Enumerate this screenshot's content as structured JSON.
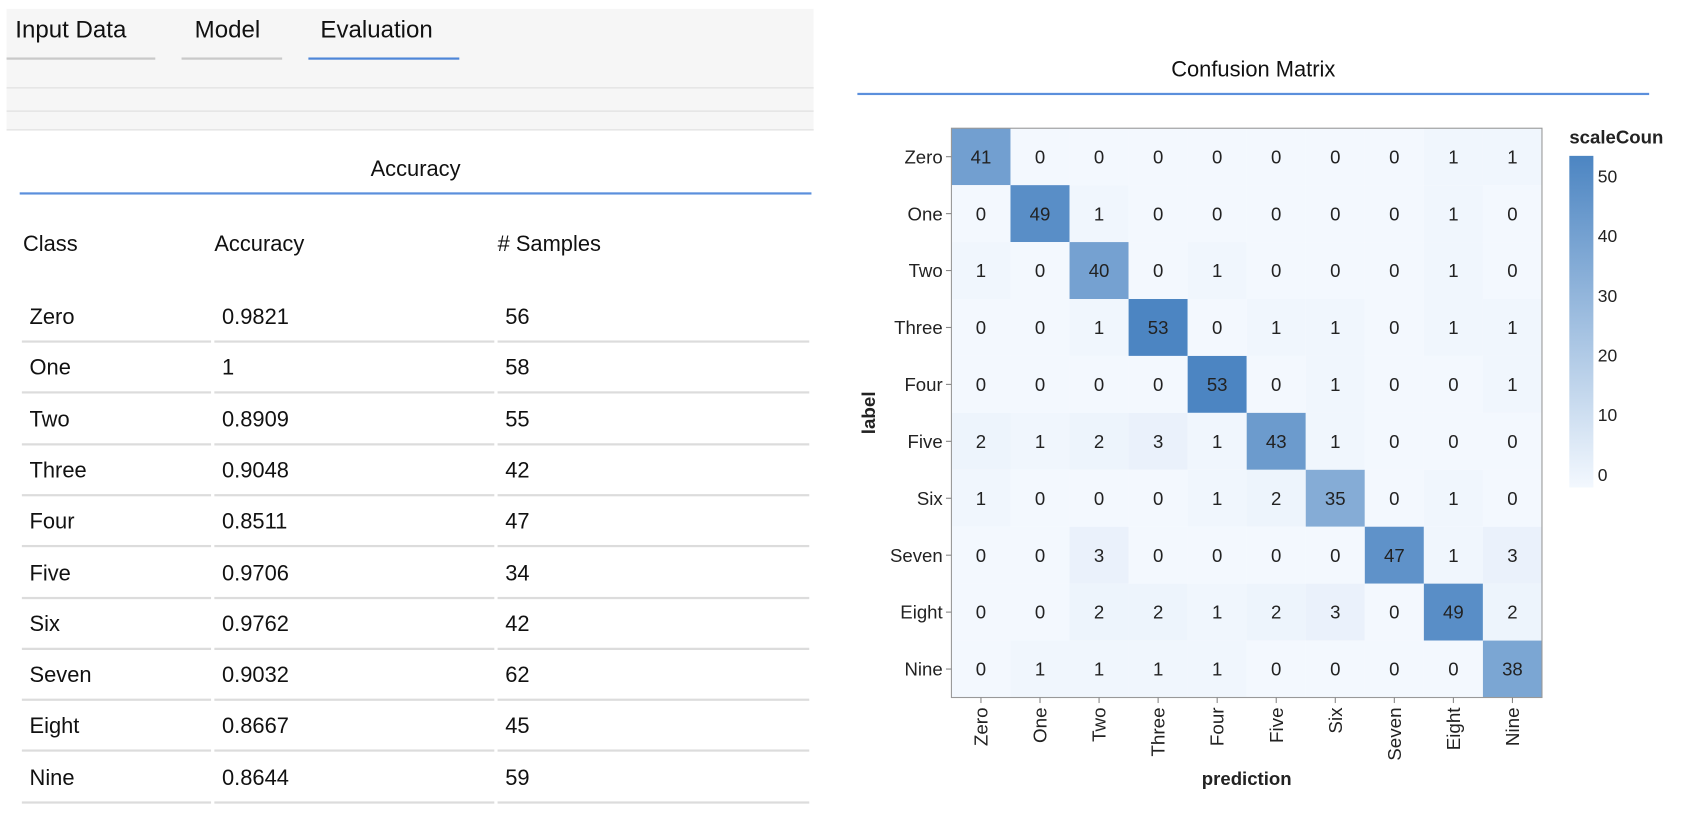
{
  "tabs": [
    {
      "label": "Input Data",
      "active": false
    },
    {
      "label": "Model",
      "active": false
    },
    {
      "label": "Evaluation",
      "active": true
    }
  ],
  "accuracy": {
    "title": "Accuracy",
    "columns": [
      "Class",
      "Accuracy",
      "# Samples"
    ],
    "rows": [
      [
        "Zero",
        "0.9821",
        "56"
      ],
      [
        "One",
        "1",
        "58"
      ],
      [
        "Two",
        "0.8909",
        "55"
      ],
      [
        "Three",
        "0.9048",
        "42"
      ],
      [
        "Four",
        "0.8511",
        "47"
      ],
      [
        "Five",
        "0.9706",
        "34"
      ],
      [
        "Six",
        "0.9762",
        "42"
      ],
      [
        "Seven",
        "0.9032",
        "62"
      ],
      [
        "Eight",
        "0.8667",
        "45"
      ],
      [
        "Nine",
        "0.8644",
        "59"
      ]
    ]
  },
  "confusion": {
    "title": "Confusion Matrix"
  },
  "chart_data": {
    "type": "heatmap",
    "title": "Confusion Matrix",
    "xlabel": "prediction",
    "ylabel": "label",
    "categories": [
      "Zero",
      "One",
      "Two",
      "Three",
      "Four",
      "Five",
      "Six",
      "Seven",
      "Eight",
      "Nine"
    ],
    "values": [
      [
        41,
        0,
        0,
        0,
        0,
        0,
        0,
        0,
        1,
        1
      ],
      [
        0,
        49,
        1,
        0,
        0,
        0,
        0,
        0,
        1,
        0
      ],
      [
        1,
        0,
        40,
        0,
        1,
        0,
        0,
        0,
        1,
        0
      ],
      [
        0,
        0,
        1,
        53,
        0,
        1,
        1,
        0,
        1,
        1
      ],
      [
        0,
        0,
        0,
        0,
        53,
        0,
        1,
        0,
        0,
        1
      ],
      [
        2,
        1,
        2,
        3,
        1,
        43,
        1,
        0,
        0,
        0
      ],
      [
        1,
        0,
        0,
        0,
        1,
        2,
        35,
        0,
        1,
        0
      ],
      [
        0,
        0,
        3,
        0,
        0,
        0,
        0,
        47,
        1,
        3
      ],
      [
        0,
        0,
        2,
        2,
        1,
        2,
        3,
        0,
        49,
        2
      ],
      [
        0,
        1,
        1,
        1,
        1,
        0,
        0,
        0,
        0,
        38
      ]
    ],
    "legend_title": "scaleCoun",
    "legend_ticks": [
      0,
      10,
      20,
      30,
      40,
      50
    ],
    "scale_range": [
      0,
      53
    ],
    "color_low": "#f3f8fe",
    "color_high": "#4c85c2",
    "legend_placement": "right"
  }
}
